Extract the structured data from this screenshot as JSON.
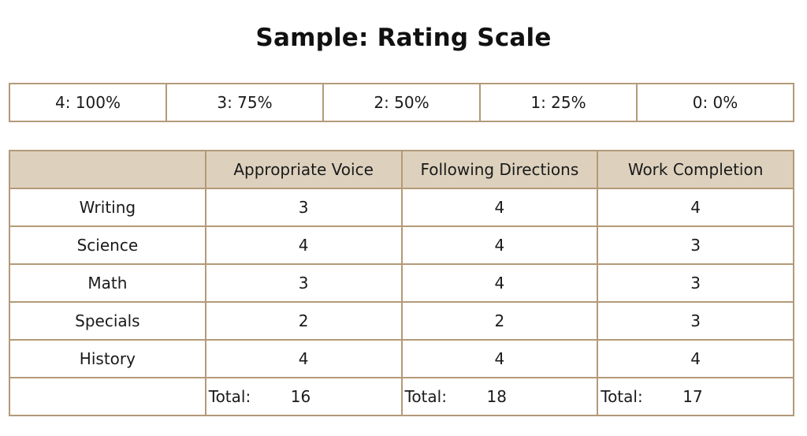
{
  "title": "Sample: Rating Scale",
  "scale": [
    "4: 100%",
    "3: 75%",
    "2: 50%",
    "1: 25%",
    "0: 0%"
  ],
  "columns": [
    "Appropriate Voice",
    "Following Directions",
    "Work Completion"
  ],
  "rows": [
    {
      "subject": "Writing",
      "values": [
        "3",
        "4",
        "4"
      ]
    },
    {
      "subject": "Science",
      "values": [
        "4",
        "4",
        "3"
      ]
    },
    {
      "subject": "Math",
      "values": [
        "3",
        "4",
        "3"
      ]
    },
    {
      "subject": "Specials",
      "values": [
        "2",
        "2",
        "3"
      ]
    },
    {
      "subject": "History",
      "values": [
        "4",
        "4",
        "4"
      ]
    }
  ],
  "totals": {
    "label": "Total:",
    "values": [
      "16",
      "18",
      "17"
    ]
  },
  "colors": {
    "border": "#b39a78",
    "header_fill": "#ddd1bd"
  }
}
